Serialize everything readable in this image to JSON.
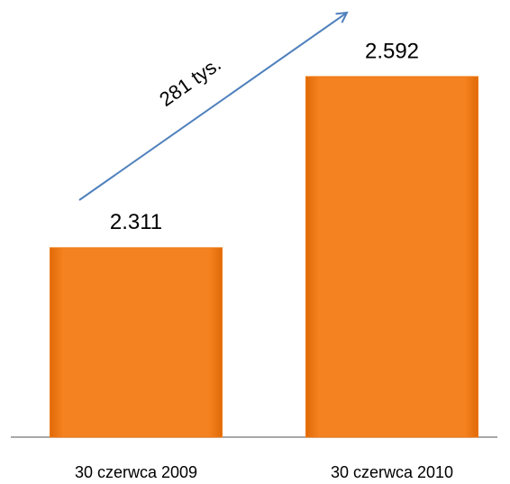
{
  "chart_data": {
    "type": "bar",
    "categories": [
      "30 czerwca 2009",
      "30 czerwca 2010"
    ],
    "values": [
      2311,
      2592
    ],
    "value_labels": [
      "2.311",
      "2.592"
    ],
    "color": "#f07810",
    "ylim": [
      2000,
      2700
    ],
    "annotation": "281 tys."
  }
}
